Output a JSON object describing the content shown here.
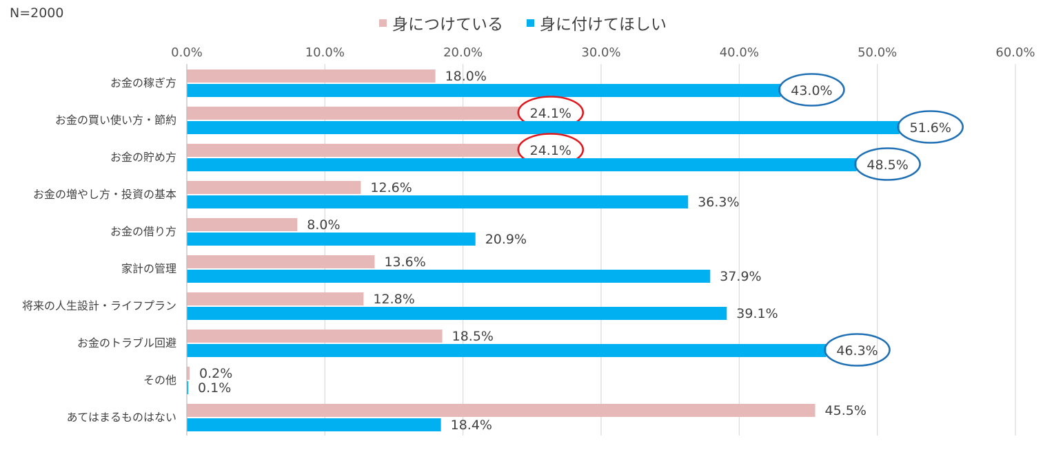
{
  "chart_data": {
    "type": "bar",
    "orientation": "horizontal",
    "sample_note": "N=2000",
    "categories": [
      "お金の稼ぎ方",
      "お金の買い使い方・節約",
      "お金の貯め方",
      "お金の増やし方・投資の基本",
      "お金の借り方",
      "家計の管理",
      "将来の人生設計・ライフプラン",
      "お金のトラブル回避",
      "その他",
      "あてはまるものはない"
    ],
    "series": [
      {
        "name": "身につけている",
        "color": "#e6b8b7",
        "values": [
          18.0,
          24.1,
          24.1,
          12.6,
          8.0,
          13.6,
          12.8,
          18.5,
          0.2,
          45.5
        ],
        "labels": [
          "18.0%",
          "24.1%",
          "24.1%",
          "12.6%",
          "8.0%",
          "13.6%",
          "12.8%",
          "18.5%",
          "0.2%",
          "45.5%"
        ],
        "circled": [
          false,
          true,
          true,
          false,
          false,
          false,
          false,
          false,
          false,
          false
        ],
        "circle_color": "#e0191f"
      },
      {
        "name": "身に付けてほしい",
        "color": "#00b0f0",
        "values": [
          43.0,
          51.6,
          48.5,
          36.3,
          20.9,
          37.9,
          39.1,
          46.3,
          0.1,
          18.4
        ],
        "labels": [
          "43.0%",
          "51.6%",
          "48.5%",
          "36.3%",
          "20.9%",
          "37.9%",
          "39.1%",
          "46.3%",
          "0.1%",
          "18.4%"
        ],
        "circled": [
          true,
          true,
          true,
          false,
          false,
          false,
          false,
          true,
          false,
          false
        ],
        "circle_color": "#1f6fb5"
      }
    ],
    "xlim": [
      0,
      60
    ],
    "xticks": [
      0,
      10,
      20,
      30,
      40,
      50,
      60
    ],
    "xtick_labels": [
      "0.0%",
      "10.0%",
      "20.0%",
      "30.0%",
      "40.0%",
      "50.0%",
      "60.0%"
    ],
    "axis_position": "top",
    "grid": true,
    "gridline_color": "#d9d9d9",
    "legend_position": "top"
  }
}
